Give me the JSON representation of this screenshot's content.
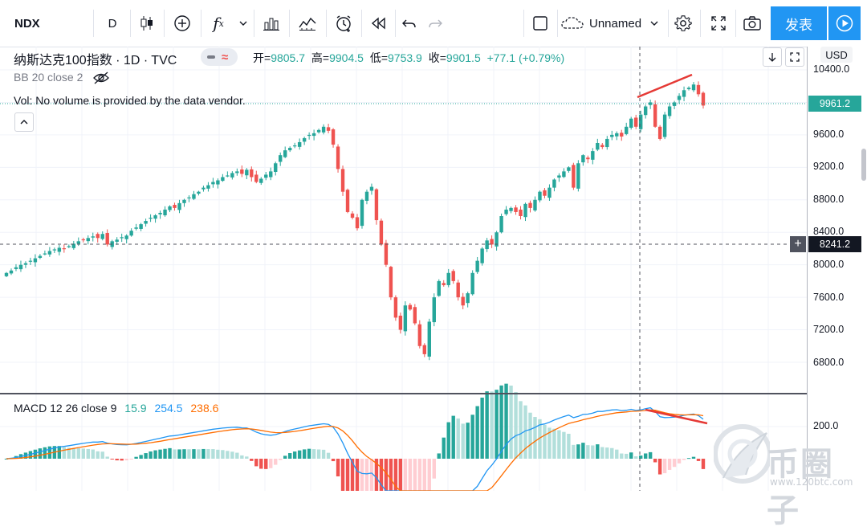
{
  "toolbar": {
    "symbol": "NDX",
    "interval": "D",
    "fx_label": "f",
    "fx_sub": "x",
    "layout_name": "Unnamed",
    "publish_label": "发表"
  },
  "legend": {
    "title": "纳斯达克100指数 · 1D · TVC",
    "open_label": "开",
    "open": "9805.7",
    "high_label": "高",
    "high": "9904.5",
    "low_label": "低",
    "low": "9753.9",
    "close_label": "收",
    "close": "9901.5",
    "change": "+77.1 (+0.79%)",
    "bb_label": "BB 20 close 2",
    "vol_message": "Vol: No volume is provided by the data vendor.",
    "currency": "USD"
  },
  "price_axis": {
    "ticks": [
      "10400.0",
      "9600.0",
      "9200.0",
      "8800.0",
      "8400.0",
      "8000.0",
      "7600.0",
      "7200.0",
      "6800.0"
    ],
    "last_price": "9961.2",
    "crosshair_price": "8241.2"
  },
  "macd": {
    "label": "MACD 12 26 close 9",
    "hist": "15.9",
    "macd": "254.5",
    "signal": "238.6",
    "tick": "200.0"
  },
  "watermark": {
    "name": "币圈子",
    "url": "www.120btc.com"
  },
  "colors": {
    "up": "#26a69a",
    "down": "#ef5350",
    "macd_line": "#2196f3",
    "signal_line": "#ff6d00",
    "accent": "#2196f3",
    "annotation": "#e53935"
  },
  "chart_data": {
    "type": "candlestick",
    "title": "纳斯达克100指数 1D TVC",
    "ylim": [
      6600,
      10550
    ],
    "closes": [
      7900,
      7930,
      7970,
      8000,
      8020,
      8050,
      8080,
      8110,
      8140,
      8170,
      8190,
      8210,
      8200,
      8230,
      8260,
      8290,
      8310,
      8330,
      8350,
      8330,
      8380,
      8250,
      8290,
      8310,
      8340,
      8360,
      8420,
      8460,
      8500,
      8540,
      8580,
      8610,
      8640,
      8680,
      8720,
      8700,
      8760,
      8800,
      8830,
      8870,
      8900,
      8950,
      8980,
      9020,
      9040,
      9080,
      9100,
      9130,
      9150,
      9120,
      9170,
      9080,
      9020,
      9060,
      9110,
      9150,
      9250,
      9350,
      9410,
      9440,
      9470,
      9510,
      9560,
      9600,
      9620,
      9660,
      9700,
      9650,
      9480,
      9180,
      8900,
      8650,
      8580,
      8450,
      8800,
      8900,
      8960,
      8550,
      8250,
      8000,
      7600,
      7350,
      7200,
      7500,
      7450,
      7280,
      7000,
      6900,
      7300,
      7600,
      7800,
      7750,
      7900,
      7800,
      7600,
      7500,
      7650,
      7900,
      8050,
      8200,
      8300,
      8250,
      8400,
      8600,
      8680,
      8700,
      8650,
      8600,
      8750,
      8700,
      8800,
      8900,
      8850,
      8950,
      9050,
      9100,
      9150,
      9200,
      8950,
      9250,
      9350,
      9300,
      9400,
      9500,
      9450,
      9550,
      9600,
      9620,
      9580,
      9700,
      9800,
      9700,
      9850,
      9950,
      10000,
      9700,
      9550,
      9850,
      9950,
      10000,
      10080,
      10150,
      10180,
      10220,
      10100,
      9961
    ]
  },
  "annotations": {
    "price_trendline": "rising",
    "macd_trendline": "falling",
    "pattern": "bearish divergence"
  }
}
